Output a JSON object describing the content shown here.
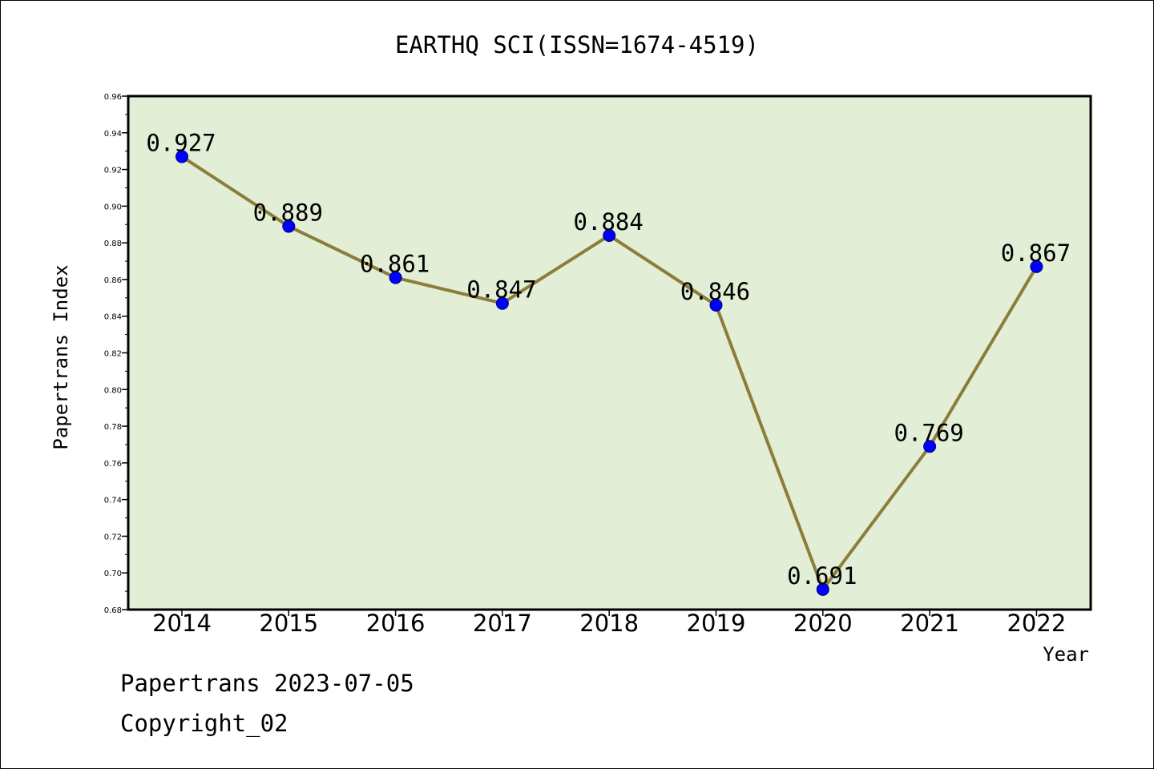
{
  "chart_data": {
    "type": "line",
    "title": "EARTHQ SCI(ISSN=1674-4519)",
    "xlabel": "Year",
    "ylabel": "Papertrans Index",
    "categories": [
      "2014",
      "2015",
      "2016",
      "2017",
      "2018",
      "2019",
      "2020",
      "2021",
      "2022"
    ],
    "series": [
      {
        "values": [
          0.927,
          0.889,
          0.861,
          0.847,
          0.884,
          0.846,
          0.691,
          0.769,
          0.867
        ],
        "data_labels": [
          "0.927",
          "0.889",
          "0.861",
          "0.847",
          "0.884",
          "0.846",
          "0.691",
          "0.769",
          "0.867"
        ]
      }
    ],
    "ylim": [
      0.68,
      0.96
    ],
    "yticks": [
      "0.68",
      "0.70",
      "0.72",
      "0.74",
      "0.76",
      "0.78",
      "0.80",
      "0.82",
      "0.84",
      "0.86",
      "0.88",
      "0.90",
      "0.92",
      "0.94",
      "0.96"
    ],
    "grid": false,
    "legend": "none",
    "colors": {
      "plot_background": "#e2efd6",
      "line": "#8b7d3a",
      "marker": "#0000ff",
      "axis": "#000000"
    }
  },
  "footer": {
    "line1": "Papertrans 2023-07-05",
    "line2": "Copyright_02"
  }
}
